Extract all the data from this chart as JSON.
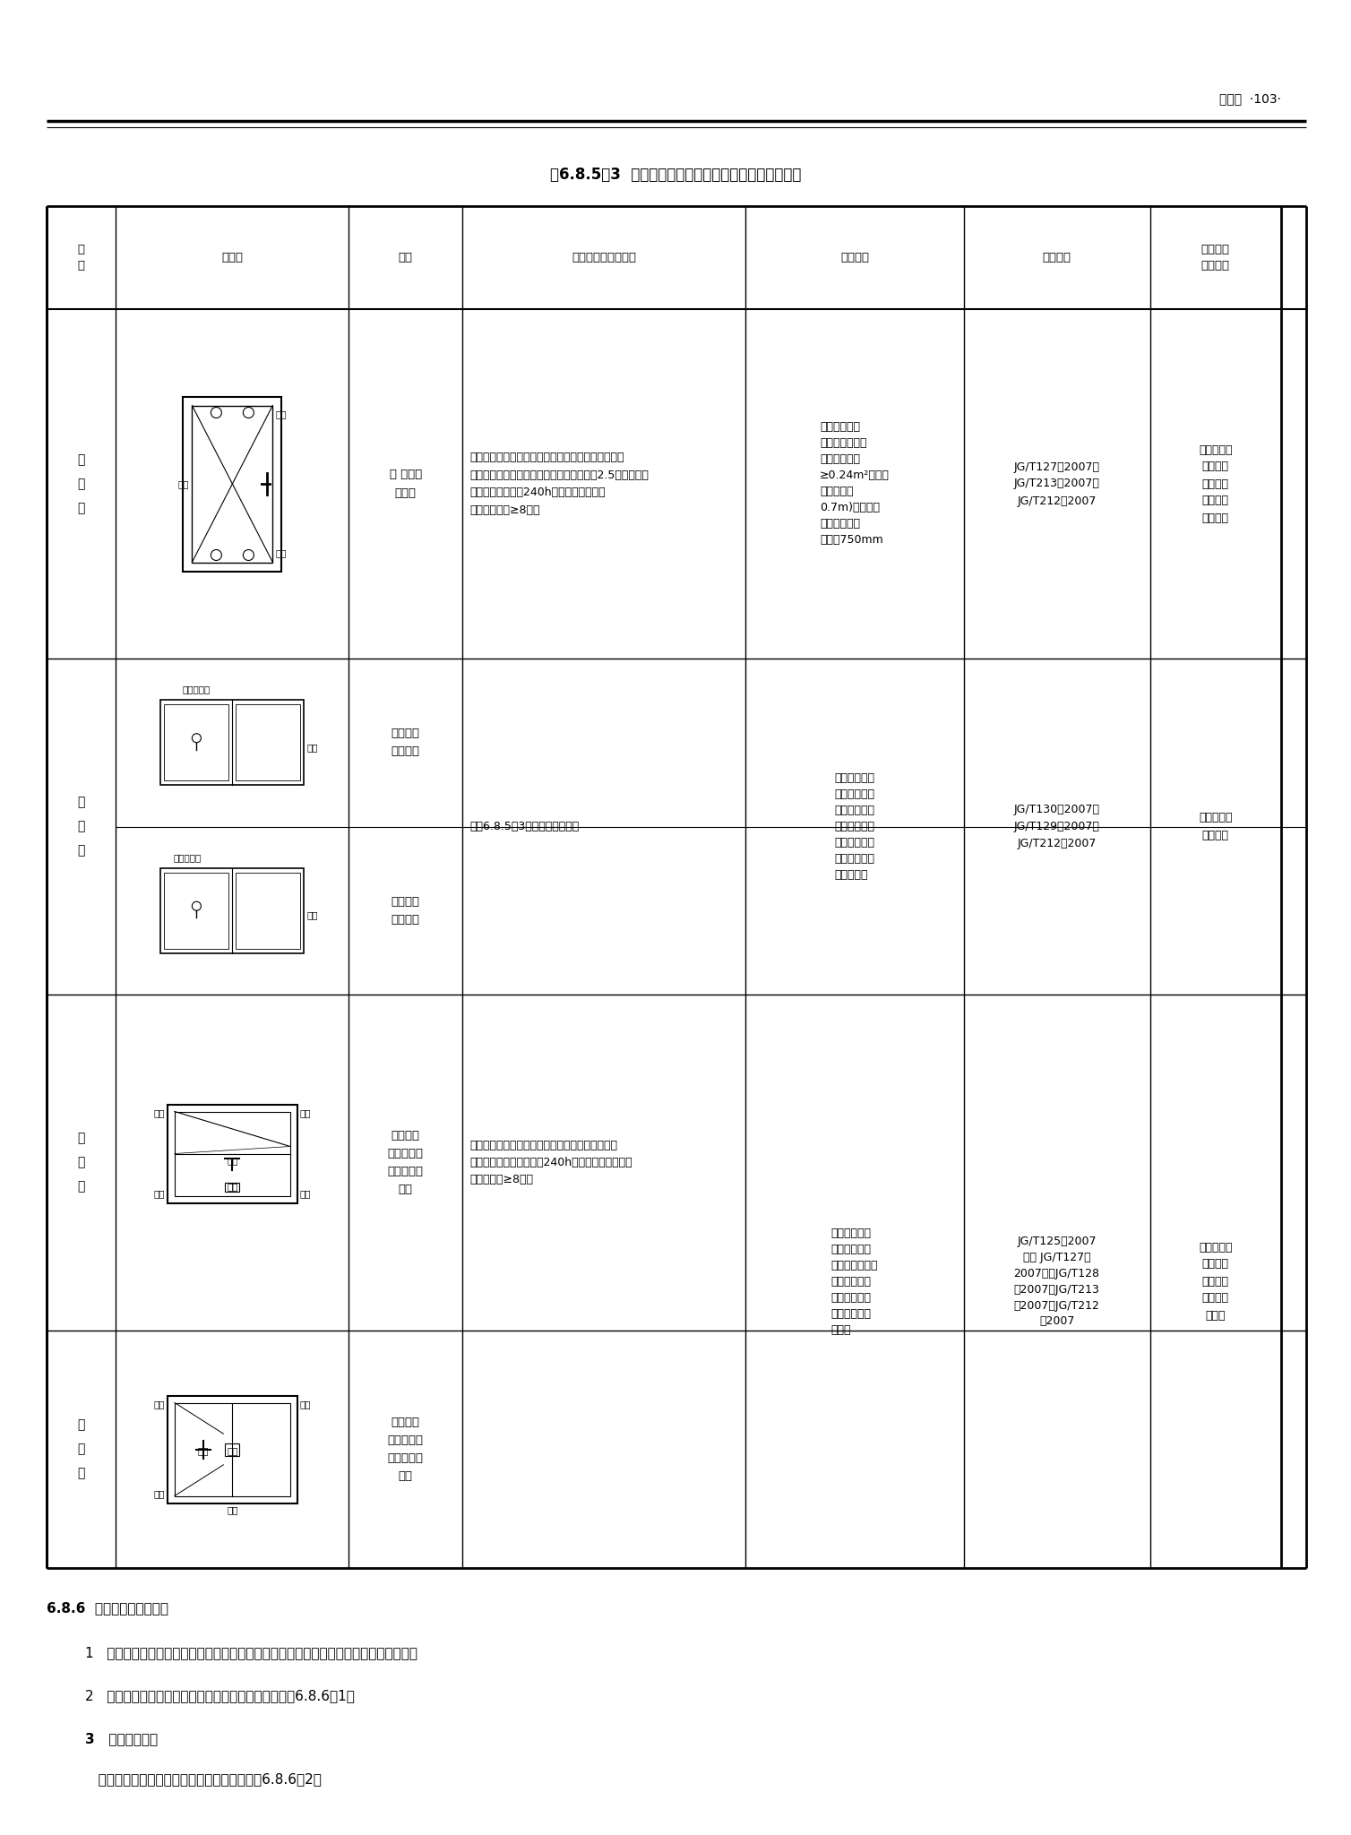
{
  "page_header": "门和窗  ·103·",
  "table_title": "表6.8.5－3  低档窗用五金件配置、性能特点及适用范围",
  "headers": [
    "分\n类",
    "示意图",
    "配置",
    "性能特点及设计要点",
    "适用范围",
    "执行标准",
    "应重点关\n注的指标"
  ],
  "row0_type": "平\n开\n窗",
  "row0_config": "滑 撑、旋\n压执手",
  "row0_features": "此配置只能实现单点锁闭，完成单一平开启闭、通风\n功能。五金件（滑撑、旋压执手）使用寿命2.5万次以上。\n碳素锂镀锌层表面240h以上不出现红锈蚀\n点（保护等级≥8级）",
  "row0_scope": "此配置仅能实\n现单点锁闭，适\n用于窗扇面积\n≥0.24m²（扇对\n角线不超过\n0.7m)的小尺寸\n平开窗。且扇\n宽度＜750mm",
  "row0_standard": "JG/T127－2007，\nJG/T213－2007，\nJG/T212－2007",
  "row0_indicators": "使用寿命、\n承载重量\n及适用扇\n的宽高比\n极限范围",
  "row1_type": "推\n拉\n窗",
  "row1a_config": "单点锁闭\n器、滑轮",
  "row1b_config": "单点锁闭\n器、滑轮",
  "row1_features": "见表6.8.5－3中推拉窗相关内容",
  "row1_scope": "此两种配置只\n能实现单点锁\n闭，由于价格\n经济，是目前\n市场上普通推\n拉窗最常见的\n五金件配置",
  "row1_standard": "JG/T130－2007，\nJG/T129－2007，\nJG/T212－2007",
  "row1_indicators": "使用寿命、\n承载重量",
  "row2_type": "中\n悬\n窗",
  "row2_config": "合页或滑\n撑、撑挡、\n限位装置、\n执手",
  "row2_features": "五金件配置简单，能改变室外空气进入室内的流通\n方向。碳素锂镀锌层表面240h以上不出现红锈蚀点\n（保护等级≥8级）",
  "row23_scope": "适用于对窗的\n物理性能要求\n不高的中悬窗、\n立悬窗。适用\n于对采光和空\n气流通有要求\n的场所",
  "row23_standard": "JG/T125－2007\n（或 JG/T127－\n2007），JG/T128\n－2007，JG/T213\n－2007，JG/T212\n－2007",
  "row23_indicators": "使用寿命、\n承载重量\n及窗扇开\n启最大极\n限距离",
  "row3_type": "立\n悬\n窗",
  "row3_config": "合页或滑\n撑、撑挡、\n限位装置、\n执手",
  "footer_title": "6.8.6  特殊类型窗用五金件",
  "footer1": "1   特殊类型窗用五金包括了插把平开窗五金件、提拉窗五金件、电动排烟天窗用五金件。",
  "footer2": "2   特殊类型窗用五金件配置、性能特点及适用范围见表6.8.6－1。",
  "footer3": "3   电动排烟天窗",
  "footer4": "   电动排烟天窗配置、性能特点及适用范围见表6.8.6－2。"
}
